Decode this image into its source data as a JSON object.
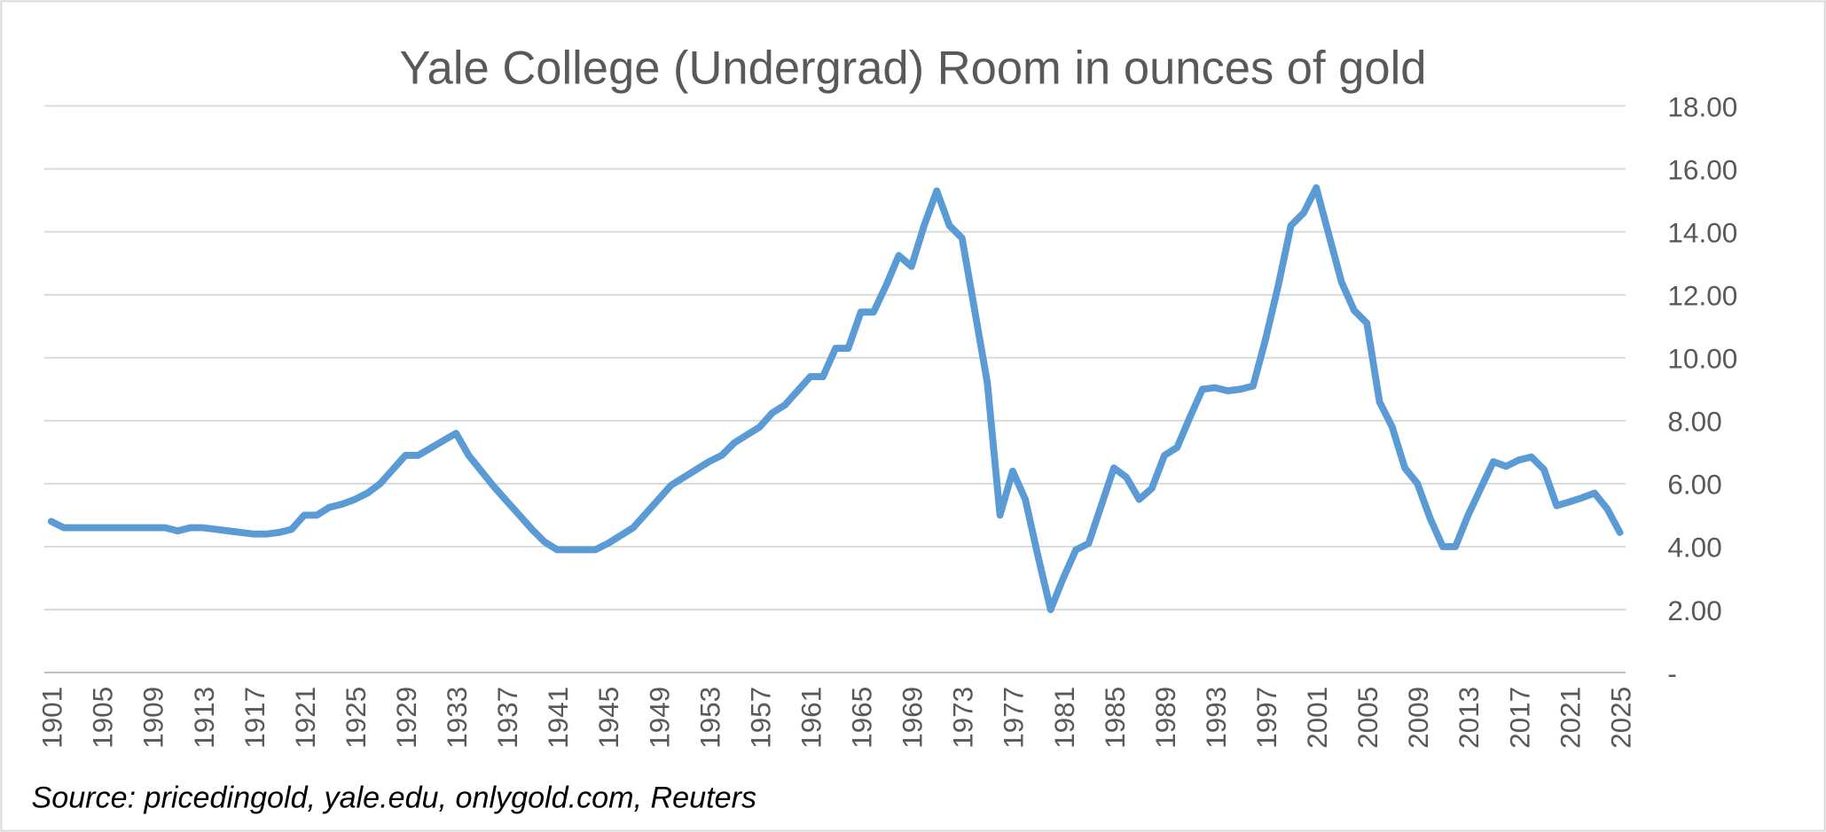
{
  "chart_data": {
    "type": "line",
    "title": "Yale College (Undergrad) Room in ounces of gold",
    "source": "Source: pricedingold, yale.edu, onlygold.com, Reuters",
    "color": "#5b9bd5",
    "x": [
      1901,
      1902,
      1903,
      1904,
      1905,
      1906,
      1907,
      1908,
      1909,
      1910,
      1911,
      1912,
      1913,
      1914,
      1915,
      1916,
      1917,
      1918,
      1919,
      1920,
      1921,
      1922,
      1923,
      1924,
      1925,
      1926,
      1927,
      1928,
      1929,
      1930,
      1931,
      1932,
      1933,
      1934,
      1935,
      1936,
      1937,
      1938,
      1939,
      1940,
      1941,
      1942,
      1943,
      1944,
      1945,
      1946,
      1947,
      1948,
      1949,
      1950,
      1951,
      1952,
      1953,
      1954,
      1955,
      1956,
      1957,
      1958,
      1959,
      1960,
      1961,
      1962,
      1963,
      1964,
      1965,
      1966,
      1967,
      1968,
      1969,
      1970,
      1971,
      1972,
      1973,
      1974,
      1975,
      1976,
      1977,
      1978,
      1979,
      1980,
      1981,
      1982,
      1983,
      1984,
      1985,
      1986,
      1987,
      1988,
      1989,
      1990,
      1991,
      1992,
      1993,
      1994,
      1995,
      1996,
      1997,
      1998,
      1999,
      2000,
      2001,
      2002,
      2003,
      2004,
      2005,
      2006,
      2007,
      2008,
      2009,
      2010,
      2011,
      2012,
      2013,
      2014,
      2015,
      2016,
      2017,
      2018,
      2019,
      2020,
      2021,
      2022,
      2023,
      2024,
      2025
    ],
    "values": [
      4.8,
      4.6,
      4.6,
      4.6,
      4.6,
      4.6,
      4.6,
      4.6,
      4.6,
      4.6,
      4.5,
      4.6,
      4.6,
      4.55,
      4.5,
      4.45,
      4.4,
      4.4,
      4.45,
      4.55,
      5.0,
      5.0,
      5.25,
      5.35,
      5.5,
      5.7,
      6.0,
      6.45,
      6.9,
      6.9,
      7.13,
      7.37,
      7.6,
      6.9,
      6.4,
      5.9,
      5.45,
      5.0,
      4.55,
      4.15,
      3.9,
      3.9,
      3.9,
      3.9,
      4.1,
      4.35,
      4.6,
      5.05,
      5.5,
      5.95,
      6.2,
      6.45,
      6.7,
      6.9,
      7.3,
      7.55,
      7.8,
      8.25,
      8.5,
      8.95,
      9.4,
      9.4,
      10.3,
      10.3,
      11.45,
      11.45,
      12.3,
      13.25,
      12.9,
      14.2,
      15.3,
      14.2,
      13.8,
      11.5,
      9.2,
      5.0,
      6.4,
      5.5,
      3.7,
      2.0,
      3.0,
      3.9,
      4.1,
      5.3,
      6.5,
      6.2,
      5.5,
      5.85,
      6.9,
      7.15,
      8.1,
      9.0,
      9.05,
      8.95,
      9.0,
      9.1,
      10.6,
      12.3,
      14.2,
      14.6,
      15.4,
      13.9,
      12.4,
      11.5,
      11.1,
      8.6,
      7.8,
      6.5,
      6.0,
      4.9,
      4.0,
      4.0,
      5.0,
      5.85,
      6.7,
      6.55,
      6.75,
      6.85,
      6.45,
      5.3,
      5.42,
      5.55,
      5.7,
      5.2,
      4.45
    ],
    "xlim": [
      1901,
      2025
    ],
    "xticks": [
      1901,
      1905,
      1909,
      1913,
      1917,
      1921,
      1925,
      1929,
      1933,
      1937,
      1941,
      1945,
      1949,
      1953,
      1957,
      1961,
      1965,
      1969,
      1973,
      1977,
      1981,
      1985,
      1989,
      1993,
      1997,
      2001,
      2005,
      2009,
      2013,
      2017,
      2021,
      2025
    ],
    "ylim": [
      0,
      18
    ],
    "yticks": [
      {
        "value": 0,
        "label": "-"
      },
      {
        "value": 2,
        "label": "2.00"
      },
      {
        "value": 4,
        "label": "4.00"
      },
      {
        "value": 6,
        "label": "6.00"
      },
      {
        "value": 8,
        "label": "8.00"
      },
      {
        "value": 10,
        "label": "10.00"
      },
      {
        "value": 12,
        "label": "12.00"
      },
      {
        "value": 14,
        "label": "14.00"
      },
      {
        "value": 16,
        "label": "16.00"
      },
      {
        "value": 18,
        "label": "18.00"
      }
    ],
    "grid": true
  }
}
